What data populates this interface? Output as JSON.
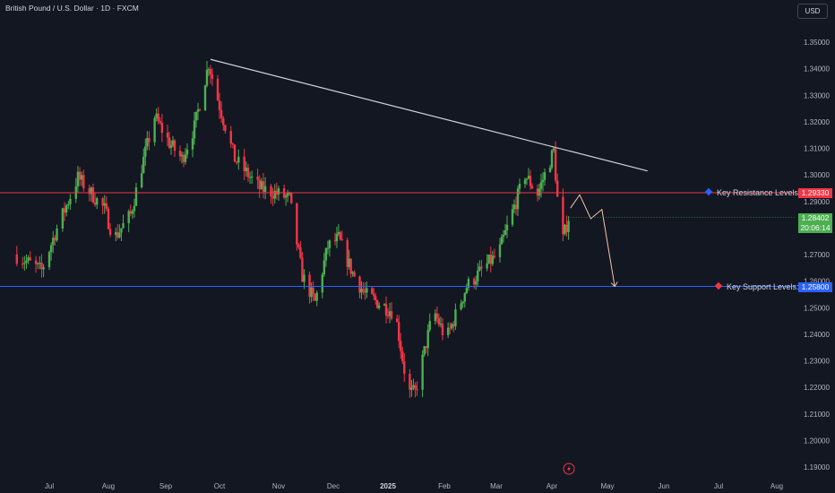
{
  "header": {
    "title": "British Pound / U.S. Dollar · 1D · FXCM",
    "currency": "USD"
  },
  "colors": {
    "background": "#131722",
    "up": "#4caf50",
    "down": "#f23645",
    "resistance": "#f23645",
    "support": "#2962ff",
    "trendline": "#d1d4dc",
    "projection": "#f5c6a5"
  },
  "levels": {
    "resistance": {
      "label": "Key Resistance Levels:",
      "value": "1.29330",
      "price": 1.2933,
      "icon": "blue-diamond-icon"
    },
    "support": {
      "label": "Key Support Levels:",
      "value": "1.25800",
      "price": 1.258,
      "icon": "red-diamond-icon"
    }
  },
  "last_price": {
    "value": "1.28402",
    "countdown": "20:06:14",
    "price": 1.28402
  },
  "chart_data": {
    "type": "candlestick",
    "x_ticks": [
      {
        "label": "Jul",
        "bold": false
      },
      {
        "label": "Aug",
        "bold": false
      },
      {
        "label": "Sep",
        "bold": false
      },
      {
        "label": "Oct",
        "bold": false
      },
      {
        "label": "Nov",
        "bold": false
      },
      {
        "label": "Dec",
        "bold": false
      },
      {
        "label": "2025",
        "bold": true
      },
      {
        "label": "Feb",
        "bold": false
      },
      {
        "label": "Mar",
        "bold": false
      },
      {
        "label": "Apr",
        "bold": false
      },
      {
        "label": "May",
        "bold": false
      },
      {
        "label": "Jun",
        "bold": false
      },
      {
        "label": "Jul",
        "bold": false
      },
      {
        "label": "Aug",
        "bold": false
      }
    ],
    "y_ticks": [
      "1.35000",
      "1.34000",
      "1.33000",
      "1.32000",
      "1.31000",
      "1.30000",
      "1.29000",
      "1.28000",
      "1.27000",
      "1.26000",
      "1.25000",
      "1.24000",
      "1.23000",
      "1.22000",
      "1.21000",
      "1.20000",
      "1.19000"
    ],
    "ylim": [
      1.1845,
      1.3605
    ],
    "price_path": [
      [
        "2024-06-14",
        1.27
      ],
      [
        "2024-06-28",
        1.264
      ],
      [
        "2024-07-05",
        1.278
      ],
      [
        "2024-07-17",
        1.299
      ],
      [
        "2024-07-31",
        1.287
      ],
      [
        "2024-08-05",
        1.276
      ],
      [
        "2024-08-14",
        1.285
      ],
      [
        "2024-08-20",
        1.303
      ],
      [
        "2024-08-27",
        1.322
      ],
      [
        "2024-09-04",
        1.312
      ],
      [
        "2024-09-11",
        1.306
      ],
      [
        "2024-09-18",
        1.318
      ],
      [
        "2024-09-26",
        1.342
      ],
      [
        "2024-10-02",
        1.326
      ],
      [
        "2024-10-10",
        1.306
      ],
      [
        "2024-10-23",
        1.295
      ],
      [
        "2024-11-01",
        1.293
      ],
      [
        "2024-11-08",
        1.291
      ],
      [
        "2024-11-15",
        1.262
      ],
      [
        "2024-11-22",
        1.252
      ],
      [
        "2024-11-29",
        1.273
      ],
      [
        "2024-12-05",
        1.276
      ],
      [
        "2024-12-13",
        1.263
      ],
      [
        "2024-12-20",
        1.255
      ],
      [
        "2025-01-06",
        1.248
      ],
      [
        "2025-01-13",
        1.218
      ],
      [
        "2025-01-17",
        1.218
      ],
      [
        "2025-01-27",
        1.249
      ],
      [
        "2025-02-03",
        1.238
      ],
      [
        "2025-02-14",
        1.258
      ],
      [
        "2025-02-26",
        1.267
      ],
      [
        "2025-03-03",
        1.27
      ],
      [
        "2025-03-14",
        1.292
      ],
      [
        "2025-03-18",
        1.3
      ],
      [
        "2025-03-25",
        1.293
      ],
      [
        "2025-04-03",
        1.309
      ],
      [
        "2025-04-07",
        1.273
      ],
      [
        "2025-04-11",
        1.284
      ]
    ],
    "trendline": {
      "from": [
        "2024-09-26",
        1.3435
      ],
      "to": [
        "2025-05-23",
        1.3015
      ]
    },
    "projection": [
      [
        "2025-04-11",
        1.2875
      ],
      [
        "2025-04-16",
        1.2925
      ],
      [
        "2025-04-22",
        1.2835
      ],
      [
        "2025-04-28",
        1.287
      ],
      [
        "2025-05-05",
        1.258
      ]
    ],
    "grid": false,
    "event_icon": "lightning-icon"
  }
}
